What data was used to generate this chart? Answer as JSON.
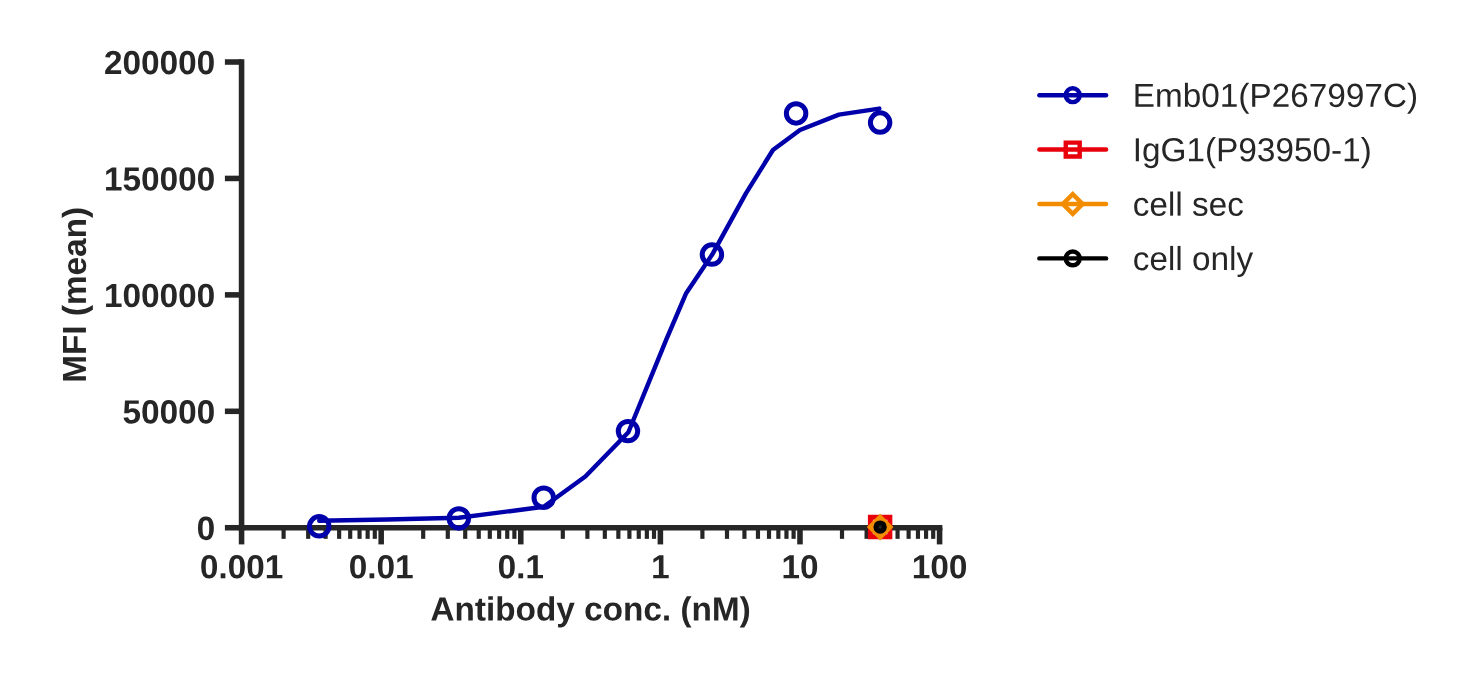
{
  "chart_data": {
    "type": "scatter",
    "xlabel": "Antibody conc. (nM)",
    "ylabel": "MFI (mean)",
    "log": "x",
    "xlim": [
      0.001,
      100
    ],
    "xticks": [
      0.001,
      0.01,
      0.1,
      1,
      10,
      100
    ],
    "ylim": [
      0,
      200000
    ],
    "yticks": [
      0,
      50000,
      100000,
      150000,
      200000
    ],
    "grid": false,
    "legend": "right",
    "series": [
      {
        "name": "Emb01(P267997C)",
        "color": "#0000aa",
        "marker": "circle",
        "x": [
          0.0036,
          0.036,
          0.146,
          0.586,
          2.34,
          9.38,
          37.5
        ],
        "values": [
          600,
          4000,
          12900,
          41500,
          117300,
          177900,
          174000
        ]
      },
      {
        "type": "line",
        "color": "#0000aa",
        "marker": "none",
        "x": [
          0.0036,
          0.011,
          0.036,
          0.146,
          0.29,
          0.59,
          1.1,
          1.53,
          2.35,
          4.1,
          6.4,
          10,
          19,
          37
        ],
        "values": [
          3000,
          3500,
          4300,
          9000,
          22000,
          41000,
          80700,
          100700,
          117300,
          143600,
          162200,
          170800,
          177400,
          180000
        ]
      },
      {
        "name": "IgG1(P93950-1)",
        "color": "#e8000b",
        "marker": "square",
        "x": [
          37.5
        ],
        "values": [
          300
        ]
      },
      {
        "name": "cell sec",
        "color": "#f28c00",
        "marker": "diamond",
        "x": [
          37.5
        ],
        "values": [
          300
        ]
      },
      {
        "name": "cell only",
        "color": "#000000",
        "marker": "circle",
        "x": [
          37.5
        ],
        "values": [
          300
        ]
      }
    ]
  }
}
